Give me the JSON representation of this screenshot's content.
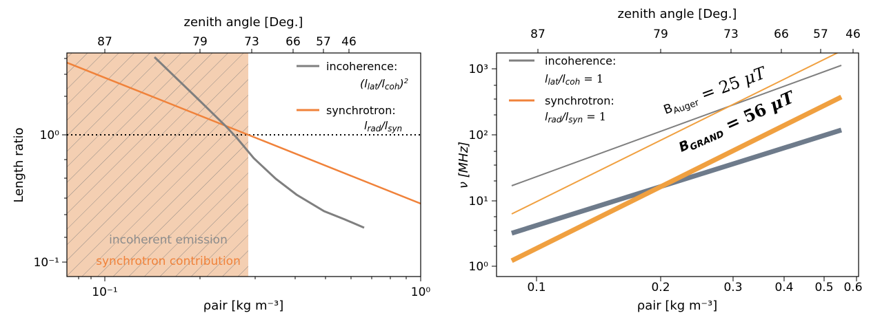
{
  "chart_data": [
    {
      "type": "line",
      "xscale": "log",
      "yscale": "log",
      "xlim": [
        0.083,
        1.0
      ],
      "ylim": [
        0.08,
        3.8
      ],
      "xlabel": "ρair [kg m⁻³]",
      "ylabel": "Length ratio",
      "top_xlabel": "zenith angle [Deg.]",
      "x_ticks": [
        "10⁻¹",
        "10⁰"
      ],
      "y_ticks": [
        "10⁻¹",
        "10⁰"
      ],
      "top_ticks": [
        "87",
        "79",
        "73",
        "66",
        "57",
        "46"
      ],
      "grid": false,
      "legend_position": "top-right",
      "shaded_region": {
        "x": [
          0.083,
          0.29
        ],
        "color": "#f4cfb2",
        "hatch": true
      },
      "reference_line": {
        "y": 1.0,
        "style": "dotted"
      },
      "annotations": [
        "incoherent emission",
        "synchrotron contribution"
      ],
      "series": [
        {
          "name": "incoherence:",
          "name_formula": "(l_lat/l_coh)²",
          "color": "#7f7f7f",
          "x": [
            0.15,
            0.2,
            0.25,
            0.28,
            0.32,
            0.38,
            0.45,
            0.55,
            0.66
          ],
          "y": [
            3.7,
            2.0,
            1.25,
            0.95,
            0.62,
            0.42,
            0.31,
            0.24,
            0.19
          ]
        },
        {
          "name": "synchrotron:",
          "name_formula": "l_rad/l_syn",
          "color": "#f0823a",
          "x": [
            0.083,
            0.29,
            1.0
          ],
          "y": [
            3.5,
            1.0,
            0.29
          ]
        }
      ]
    },
    {
      "type": "line",
      "xscale": "log",
      "yscale": "log",
      "xlim": [
        0.07,
        0.62
      ],
      "ylim": [
        0.85,
        2000
      ],
      "xlabel": "ρair [kg m⁻³]",
      "ylabel": "ν [MHz]",
      "top_xlabel": "zenith angle [Deg.]",
      "x_ticks": [
        "0.1",
        "0.2",
        "0.3",
        "0.4",
        "0.5",
        "0.6"
      ],
      "y_ticks": [
        "10⁰",
        "10¹",
        "10²",
        "10³"
      ],
      "top_ticks": [
        "87",
        "79",
        "73",
        "66",
        "57",
        "46"
      ],
      "grid": false,
      "legend_position": "top-left",
      "legend": [
        {
          "name": "incoherence:",
          "formula": "l_lat/l_coh = 1",
          "color": "#7f7f7f"
        },
        {
          "name": "synchrotron:",
          "formula": "l_rad/l_syn = 1",
          "color": "#f0823a"
        }
      ],
      "annotations": [
        "B_Auger = 25 μT",
        "B_GRAND = 56 μT"
      ],
      "series": [
        {
          "group": "Auger",
          "kind": "incoherence",
          "color": "#7f7f7f",
          "width": "thin",
          "x": [
            0.075,
            0.56
          ],
          "y": [
            17,
            1050
          ]
        },
        {
          "group": "Auger",
          "kind": "synchrotron",
          "color": "#f0a040",
          "width": "thin",
          "x": [
            0.075,
            0.56
          ],
          "y": [
            6.2,
            1700
          ]
        },
        {
          "group": "GRAND",
          "kind": "incoherence",
          "color": "#6e7b8b",
          "width": "thick",
          "x": [
            0.075,
            0.56
          ],
          "y": [
            3.3,
            215
          ]
        },
        {
          "group": "GRAND",
          "kind": "synchrotron",
          "color": "#f0a040",
          "width": "thick",
          "x": [
            0.075,
            0.56
          ],
          "y": [
            1.25,
            345
          ]
        }
      ]
    }
  ],
  "text": {
    "left_top_title": "zenith angle [Deg.]",
    "left_ylabel": "Length ratio",
    "left_top_ticks": [
      "87",
      "79",
      "73",
      "66",
      "57",
      "46"
    ],
    "left_leg_incoh": "incoherence:",
    "left_leg_sync": "synchrotron:",
    "ann_incoherent": "incoherent emission",
    "ann_synchrotron": "synchrotron contribution",
    "right_top_title": "zenith angle [Deg.]",
    "right_top_ticks": [
      "87",
      "79",
      "73",
      "66",
      "57",
      "46"
    ],
    "right_x_ticks": [
      "0.1",
      "0.2",
      "0.3",
      "0.4",
      "0.5",
      "0.6"
    ],
    "right_leg_incoh": "incoherence:",
    "right_leg_sync": "synchrotron:"
  },
  "colors": {
    "gray": "#7f7f7f",
    "orange": "#f0823a",
    "orange_light": "#f0a040",
    "slate": "#6e7b8b",
    "shade": "#f4cfb2",
    "annotation_gray": "#8c8c8c"
  }
}
